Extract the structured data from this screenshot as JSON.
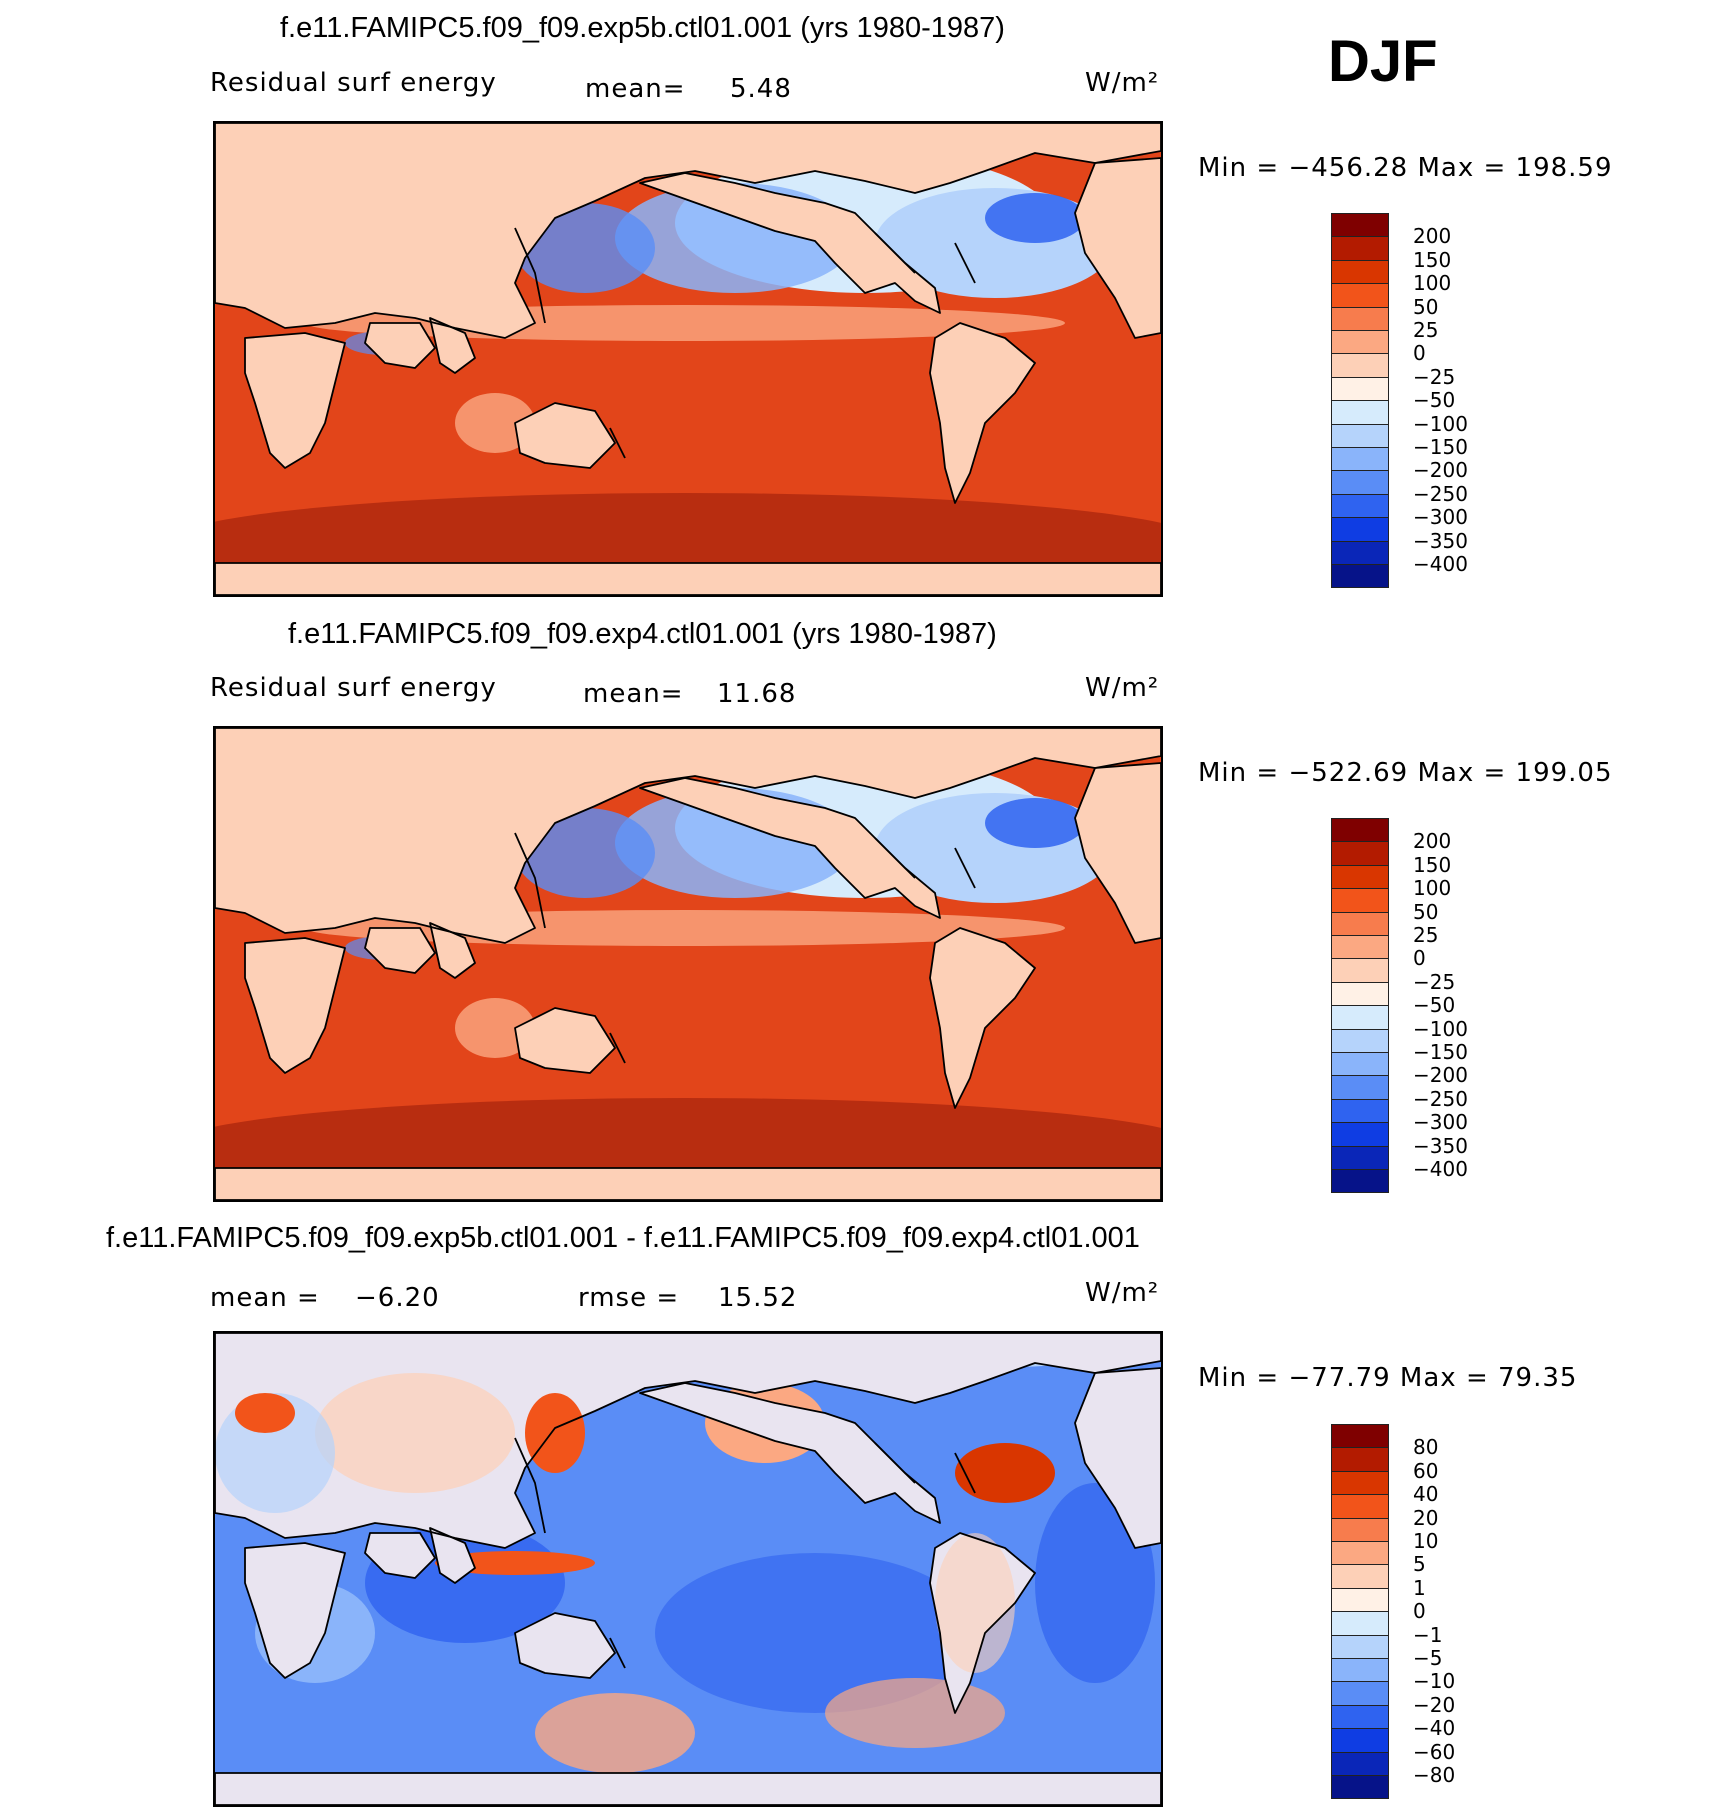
{
  "season": "DJF",
  "panels": [
    {
      "title": "f.e11.FAMIPC5.f09_f09.exp5b.ctl01.001 (yrs 1980-1987)",
      "left_label": "Residual  surf  energy",
      "stat_label": "mean=",
      "stat_value": "5.48",
      "units": "W/m²",
      "minmax": "Min  =  −456.28  Max  =  198.59",
      "kind": "field",
      "colorbar": {
        "colors": [
          "#7f0000",
          "#b31b00",
          "#d93600",
          "#f2541a",
          "#f77c4d",
          "#fba882",
          "#fdd0b7",
          "#fff1e6",
          "#d6ebfc",
          "#b5d3fb",
          "#8ab4fa",
          "#5a8df6",
          "#2f63f0",
          "#0f3de3",
          "#0a26b8",
          "#061389"
        ],
        "ticks": [
          "200",
          "150",
          "100",
          "50",
          "25",
          "0",
          "−25",
          "−50",
          "−100",
          "−150",
          "−200",
          "−250",
          "−300",
          "−350",
          "−400"
        ]
      }
    },
    {
      "title": "f.e11.FAMIPC5.f09_f09.exp4.ctl01.001 (yrs 1980-1987)",
      "left_label": "Residual  surf  energy",
      "stat_label": "mean=",
      "stat_value": "11.68",
      "units": "W/m²",
      "minmax": "Min  =  −522.69  Max  =  199.05",
      "kind": "field",
      "colorbar": {
        "colors": [
          "#7f0000",
          "#b31b00",
          "#d93600",
          "#f2541a",
          "#f77c4d",
          "#fba882",
          "#fdd0b7",
          "#fff1e6",
          "#d6ebfc",
          "#b5d3fb",
          "#8ab4fa",
          "#5a8df6",
          "#2f63f0",
          "#0f3de3",
          "#0a26b8",
          "#061389"
        ],
        "ticks": [
          "200",
          "150",
          "100",
          "50",
          "25",
          "0",
          "−25",
          "−50",
          "−100",
          "−150",
          "−200",
          "−250",
          "−300",
          "−350",
          "−400"
        ]
      }
    },
    {
      "title": "f.e11.FAMIPC5.f09_f09.exp5b.ctl01.001 - f.e11.FAMIPC5.f09_f09.exp4.ctl01.001",
      "left_label": "mean  =",
      "left_value": "−6.20",
      "stat_label": "rmse  =",
      "stat_value": "15.52",
      "units": "W/m²",
      "minmax": "Min  =  −77.79  Max  =   79.35",
      "kind": "diff",
      "colorbar": {
        "colors": [
          "#7f0000",
          "#b31b00",
          "#d93600",
          "#f2541a",
          "#f77c4d",
          "#fba882",
          "#fdd0b7",
          "#fff1e6",
          "#d6ebfc",
          "#b5d3fb",
          "#8ab4fa",
          "#5a8df6",
          "#2f63f0",
          "#0f3de3",
          "#0a26b8",
          "#061389"
        ],
        "ticks": [
          "80",
          "60",
          "40",
          "20",
          "10",
          "5",
          "1",
          "0",
          "−1",
          "−5",
          "−10",
          "−20",
          "−40",
          "−60",
          "−80"
        ]
      }
    }
  ],
  "chart_data": [
    {
      "type": "heatmap",
      "title": "f.e11.FAMIPC5.f09_f09.exp5b.ctl01.001 (yrs 1980-1987)",
      "variable": "Residual surf energy",
      "units": "W/m2",
      "mean": 5.48,
      "min": -456.28,
      "max": 198.59,
      "levels": [
        200,
        150,
        100,
        50,
        25,
        0,
        -25,
        -50,
        -100,
        -150,
        -200,
        -250,
        -300,
        -350,
        -400
      ]
    },
    {
      "type": "heatmap",
      "title": "f.e11.FAMIPC5.f09_f09.exp4.ctl01.001 (yrs 1980-1987)",
      "variable": "Residual surf energy",
      "units": "W/m2",
      "mean": 11.68,
      "min": -522.69,
      "max": 199.05,
      "levels": [
        200,
        150,
        100,
        50,
        25,
        0,
        -25,
        -50,
        -100,
        -150,
        -200,
        -250,
        -300,
        -350,
        -400
      ]
    },
    {
      "type": "heatmap",
      "title": "f.e11.FAMIPC5.f09_f09.exp5b.ctl01.001 - f.e11.FAMIPC5.f09_f09.exp4.ctl01.001",
      "units": "W/m2",
      "mean": -6.2,
      "rmse": 15.52,
      "min": -77.79,
      "max": 79.35,
      "levels": [
        80,
        60,
        40,
        20,
        10,
        5,
        1,
        0,
        -1,
        -5,
        -10,
        -20,
        -40,
        -60,
        -80
      ]
    }
  ]
}
